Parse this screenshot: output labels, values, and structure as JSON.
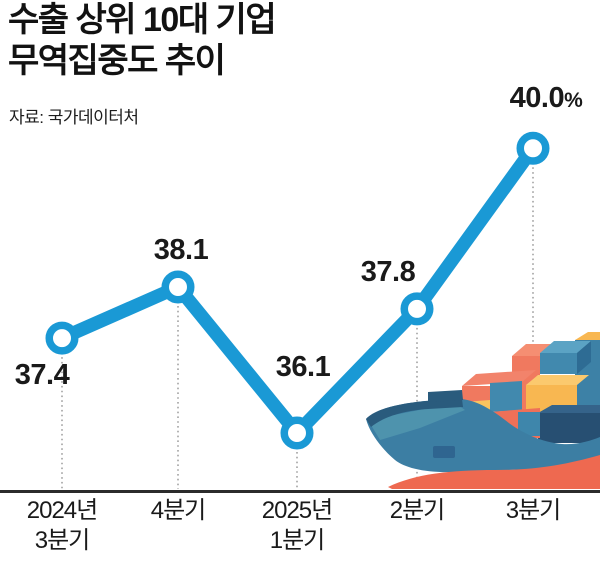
{
  "title": {
    "line1": "수출 상위 10대 기업",
    "line2": "무역집중도 추이"
  },
  "source": "자료: 국가데이터처",
  "chart_data": {
    "type": "line",
    "title": "수출 상위 10대 기업 무역집중도 추이",
    "source": "자료: 국가데이터처",
    "categories": [
      "2024년 3분기",
      "4분기",
      "2025년 1분기",
      "2분기",
      "3분기"
    ],
    "values": [
      37.4,
      38.1,
      36.1,
      37.8,
      40.0
    ],
    "unit": "%",
    "value_labels": [
      "37.4",
      "38.1",
      "36.1",
      "37.8",
      "40.0"
    ],
    "highlight_label": "40.0%",
    "ylim": [
      35.5,
      40.5
    ],
    "grid": false,
    "legend": "none",
    "line_color": "#1a99d5",
    "marker": "open-circle",
    "guide_line_color": "#8c8c8c",
    "axis_line_color": "#2b2b2b"
  },
  "x_axis": [
    {
      "line1": "2024년",
      "line2": "3분기"
    },
    {
      "line1": "4분기"
    },
    {
      "line1": "2025년",
      "line2": "1분기"
    },
    {
      "line1": "2분기"
    },
    {
      "line1": "3분기"
    }
  ],
  "illustration": {
    "name": "container-ship",
    "hull_color": "#3c7ea3",
    "deck_color": "#4e93ad",
    "gunwale_color": "#2a5b7d",
    "bottom_color": "#ee6950",
    "container_colors": [
      "#f0795f",
      "#f8b751",
      "#4189ae",
      "#274f72"
    ]
  }
}
